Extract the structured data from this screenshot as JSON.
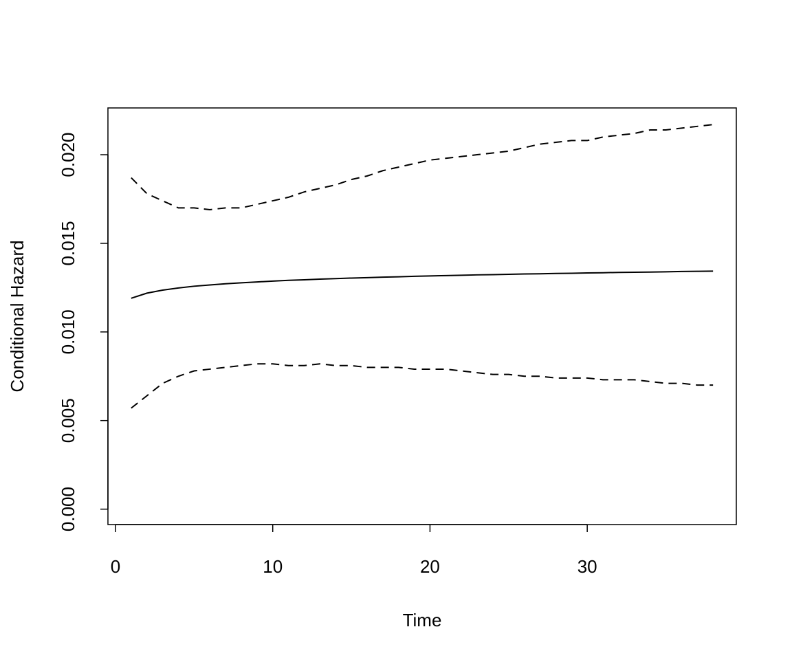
{
  "chart_data": {
    "type": "line",
    "x_label": "Time",
    "y_label": "Conditional Hazard",
    "x": [
      1,
      2,
      3,
      4,
      5,
      6,
      7,
      8,
      9,
      10,
      11,
      12,
      13,
      14,
      15,
      16,
      17,
      18,
      19,
      20,
      21,
      22,
      23,
      24,
      25,
      26,
      27,
      28,
      29,
      30,
      31,
      32,
      33,
      34,
      35,
      36,
      37,
      38
    ],
    "series": [
      {
        "color": "#000000",
        "dash": "solid",
        "values": [
          0.0119,
          0.01219,
          0.01236,
          0.01248,
          0.01258,
          0.01265,
          0.01272,
          0.01277,
          0.01282,
          0.01287,
          0.01291,
          0.01294,
          0.01298,
          0.01301,
          0.01304,
          0.01306,
          0.01309,
          0.01311,
          0.01314,
          0.01316,
          0.01318,
          0.0132,
          0.01322,
          0.01323,
          0.01325,
          0.01327,
          0.01328,
          0.0133,
          0.01331,
          0.01333,
          0.01334,
          0.01336,
          0.01337,
          0.01338,
          0.01339,
          0.01341,
          0.01342,
          0.01343
        ]
      },
      {
        "color": "#000000",
        "dash": "dashed",
        "values": [
          0.0187,
          0.0178,
          0.0174,
          0.017,
          0.017,
          0.0169,
          0.017,
          0.017,
          0.0172,
          0.0174,
          0.0176,
          0.0179,
          0.0181,
          0.0183,
          0.0186,
          0.0188,
          0.0191,
          0.0193,
          0.0195,
          0.0197,
          0.0198,
          0.0199,
          0.02,
          0.0201,
          0.0202,
          0.0204,
          0.0206,
          0.0207,
          0.0208,
          0.0208,
          0.021,
          0.0211,
          0.0212,
          0.0214,
          0.0214,
          0.0215,
          0.0216,
          0.0217
        ]
      },
      {
        "color": "#000000",
        "dash": "dashed",
        "values": [
          0.0057,
          0.0064,
          0.0071,
          0.0075,
          0.0078,
          0.0079,
          0.008,
          0.0081,
          0.0082,
          0.0082,
          0.0081,
          0.0081,
          0.0082,
          0.0081,
          0.0081,
          0.008,
          0.008,
          0.008,
          0.0079,
          0.0079,
          0.0079,
          0.0078,
          0.0077,
          0.0076,
          0.0076,
          0.0075,
          0.0075,
          0.0074,
          0.0074,
          0.0074,
          0.0073,
          0.0073,
          0.0073,
          0.0072,
          0.0071,
          0.0071,
          0.007,
          0.007
        ]
      }
    ],
    "xlim": [
      -0.48,
      39.48
    ],
    "xticks": [
      0,
      10,
      20,
      30
    ],
    "ylim": [
      -0.00087,
      0.02264
    ],
    "yticks": [
      {
        "value": 0,
        "label": "0.000"
      },
      {
        "value": 0.005,
        "label": "0.005"
      },
      {
        "value": 0.01,
        "label": "0.010"
      },
      {
        "value": 0.015,
        "label": "0.015"
      },
      {
        "value": 0.02,
        "label": "0.020"
      }
    ],
    "grid": false
  }
}
